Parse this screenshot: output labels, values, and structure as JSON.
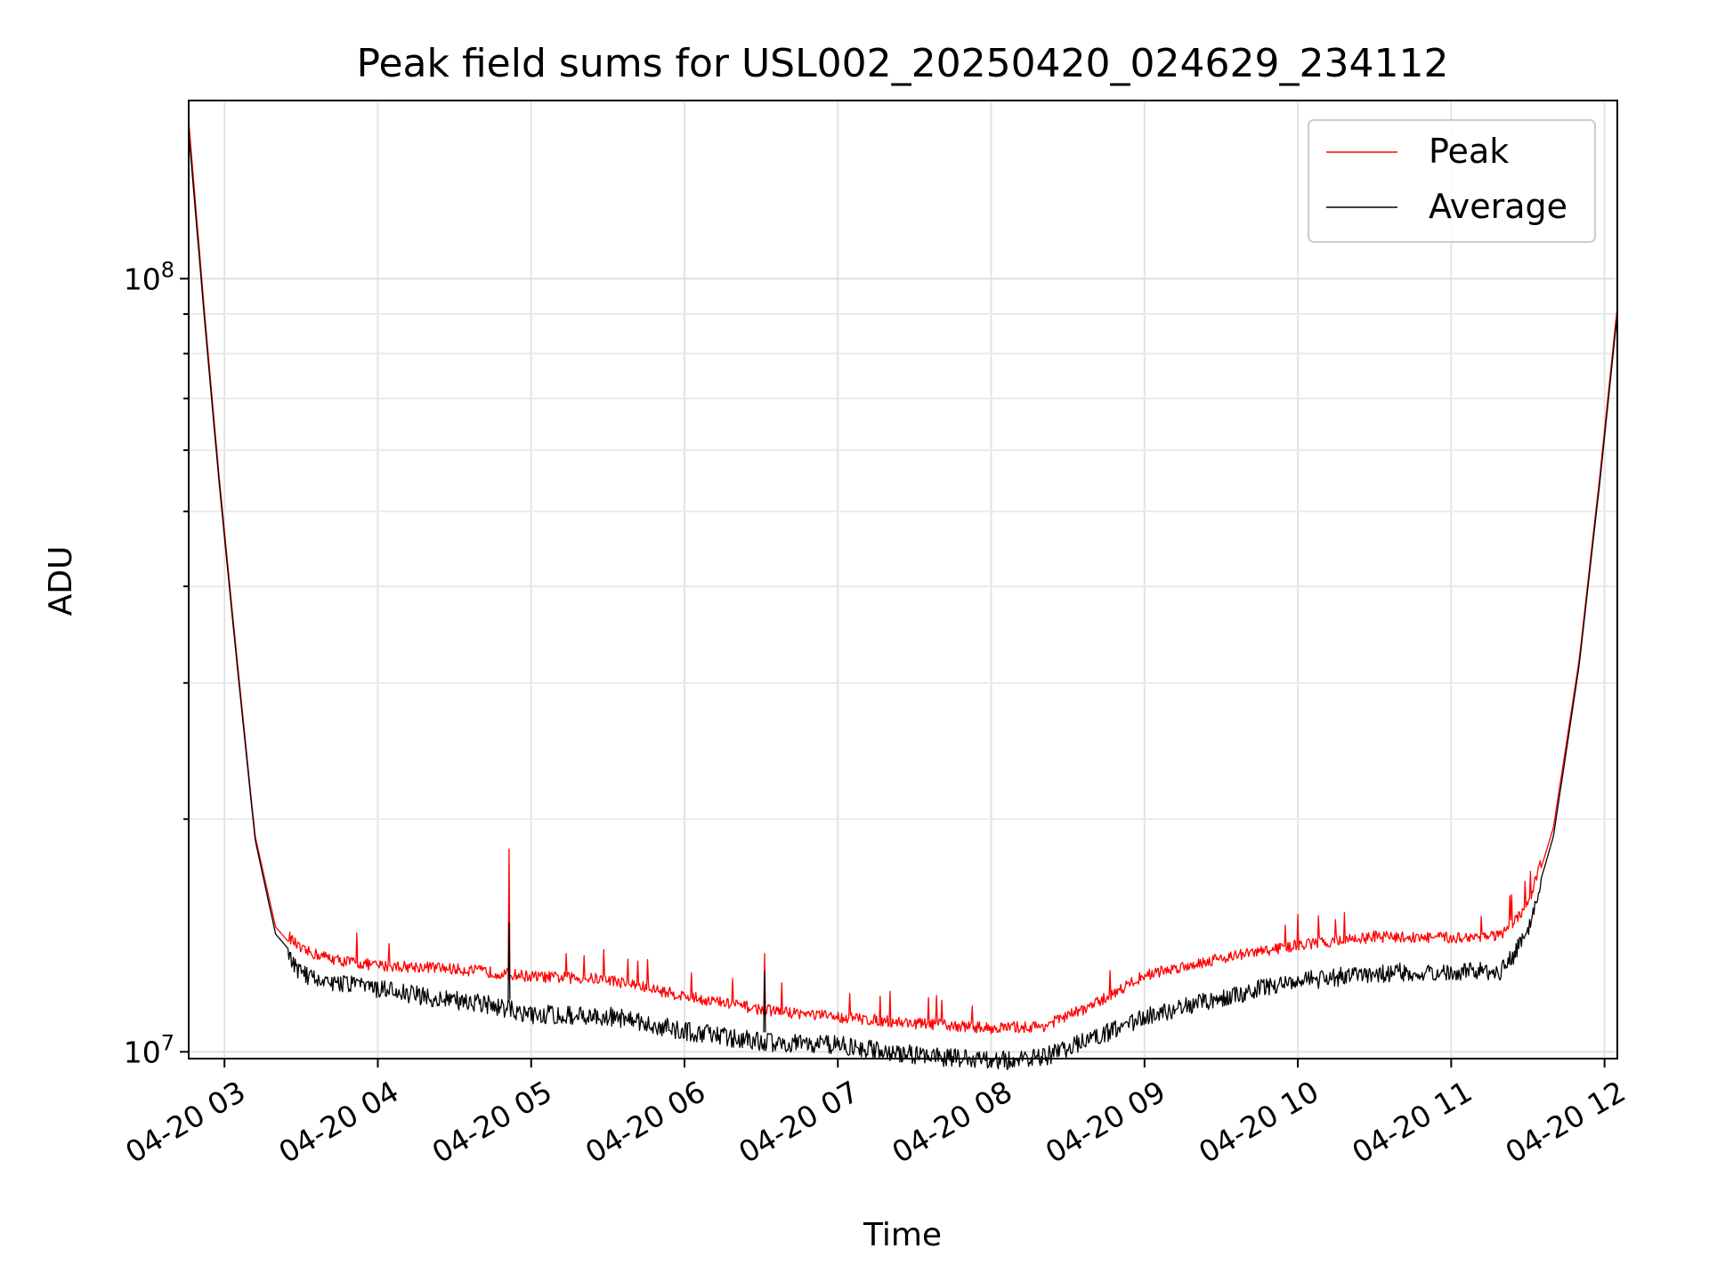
{
  "chart_data": {
    "type": "line",
    "title": "Peak field sums for USL002_20250420_024629_234112",
    "xlabel": "Time",
    "ylabel": "ADU",
    "yscale": "log",
    "grid": true,
    "legend_position": "top-right",
    "x_tick_labels": [
      "04-20 03",
      "04-20 04",
      "04-20 05",
      "04-20 06",
      "04-20 07",
      "04-20 08",
      "04-20 09",
      "04-20 10",
      "04-20 11",
      "04-20 12"
    ],
    "y_tick_labels": [
      {
        "base": "10",
        "exp": "7"
      },
      {
        "base": "10",
        "exp": "8"
      }
    ],
    "xlim": [
      "2025-04-20 02:46",
      "2025-04-20 12:05"
    ],
    "ylim": [
      9800000,
      170000000
    ],
    "series": [
      {
        "name": "Peak",
        "color": "#ff0000",
        "points": [
          [
            "2025-04-20 02:46",
            160000000
          ],
          [
            "2025-04-20 02:52",
            92000000
          ],
          [
            "2025-04-20 02:58",
            55000000
          ],
          [
            "2025-04-20 03:05",
            32000000
          ],
          [
            "2025-04-20 03:12",
            19000000
          ],
          [
            "2025-04-20 03:20",
            14500000
          ],
          [
            "2025-04-20 03:30",
            13300000
          ],
          [
            "2025-04-20 03:45",
            12900000
          ],
          [
            "2025-04-20 04:00",
            12700000
          ],
          [
            "2025-04-20 04:20",
            12650000
          ],
          [
            "2025-04-20 04:40",
            12500000
          ],
          [
            "2025-04-20 05:00",
            12300000
          ],
          [
            "2025-04-20 05:30",
            12200000
          ],
          [
            "2025-04-20 06:00",
            11600000
          ],
          [
            "2025-04-20 06:30",
            11150000
          ],
          [
            "2025-04-20 07:00",
            10900000
          ],
          [
            "2025-04-20 07:30",
            10700000
          ],
          [
            "2025-04-20 08:00",
            10550000
          ],
          [
            "2025-04-20 08:20",
            10600000
          ],
          [
            "2025-04-20 08:40",
            11300000
          ],
          [
            "2025-04-20 09:00",
            12350000
          ],
          [
            "2025-04-20 09:30",
            13000000
          ],
          [
            "2025-04-20 10:00",
            13500000
          ],
          [
            "2025-04-20 10:30",
            13850000
          ],
          [
            "2025-04-20 11:00",
            13800000
          ],
          [
            "2025-04-20 11:20",
            13900000
          ],
          [
            "2025-04-20 11:30",
            15200000
          ],
          [
            "2025-04-20 11:40",
            19500000
          ],
          [
            "2025-04-20 11:50",
            32000000
          ],
          [
            "2025-04-20 11:58",
            55000000
          ],
          [
            "2025-04-20 12:05",
            92000000
          ]
        ],
        "spikes": [
          [
            "2025-04-20 04:51",
            18300000
          ],
          [
            "2025-04-20 06:31",
            13400000
          ]
        ]
      },
      {
        "name": "Average",
        "color": "#000000",
        "points": [
          [
            "2025-04-20 02:46",
            155000000
          ],
          [
            "2025-04-20 02:52",
            90000000
          ],
          [
            "2025-04-20 02:58",
            54000000
          ],
          [
            "2025-04-20 03:05",
            31500000
          ],
          [
            "2025-04-20 03:12",
            18800000
          ],
          [
            "2025-04-20 03:20",
            14200000
          ],
          [
            "2025-04-20 03:30",
            13000000
          ],
          [
            "2025-04-20 03:45",
            12600000
          ],
          [
            "2025-04-20 04:00",
            12400000
          ],
          [
            "2025-04-20 04:20",
            12100000
          ],
          [
            "2025-04-20 04:40",
            11900000
          ],
          [
            "2025-04-20 05:00",
            11500000
          ],
          [
            "2025-04-20 05:30",
            11450000
          ],
          [
            "2025-04-20 06:00",
            10950000
          ],
          [
            "2025-04-20 06:30",
            10600000
          ],
          [
            "2025-04-20 07:00",
            10500000
          ],
          [
            "2025-04-20 07:30",
            10200000
          ],
          [
            "2025-04-20 08:00",
            10000000
          ],
          [
            "2025-04-20 08:20",
            10100000
          ],
          [
            "2025-04-20 08:40",
            10700000
          ],
          [
            "2025-04-20 09:00",
            11400000
          ],
          [
            "2025-04-20 09:30",
            12100000
          ],
          [
            "2025-04-20 10:00",
            12700000
          ],
          [
            "2025-04-20 10:30",
            13000000
          ],
          [
            "2025-04-20 11:00",
            13100000
          ],
          [
            "2025-04-20 11:20",
            13100000
          ],
          [
            "2025-04-20 11:30",
            14600000
          ],
          [
            "2025-04-20 11:40",
            19000000
          ],
          [
            "2025-04-20 11:50",
            31500000
          ],
          [
            "2025-04-20 11:58",
            54000000
          ],
          [
            "2025-04-20 12:05",
            90000000
          ]
        ],
        "spikes": [
          [
            "2025-04-20 04:51",
            14700000
          ],
          [
            "2025-04-20 06:31",
            12700000
          ]
        ]
      }
    ]
  }
}
